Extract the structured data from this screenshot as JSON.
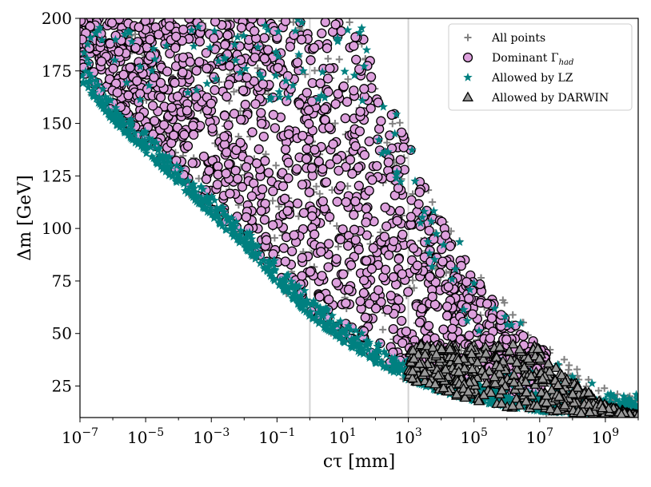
{
  "chart_data": {
    "type": "scatter",
    "title": "",
    "xlabel": "cτ [mm]",
    "ylabel": "Δm [GeV]",
    "xscale": "log",
    "xlim_log10": [
      -7,
      10
    ],
    "ylim": [
      10,
      200
    ],
    "x_ticks": [
      {
        "base": "10",
        "exp": "−7",
        "log10": -7
      },
      {
        "base": "10",
        "exp": "−5",
        "log10": -5
      },
      {
        "base": "10",
        "exp": "−3",
        "log10": -3
      },
      {
        "base": "10",
        "exp": "−1",
        "log10": -1
      },
      {
        "base": "10",
        "exp": "1",
        "log10": 1
      },
      {
        "base": "10",
        "exp": "3",
        "log10": 3
      },
      {
        "base": "10",
        "exp": "5",
        "log10": 5
      },
      {
        "base": "10",
        "exp": "7",
        "log10": 7
      },
      {
        "base": "10",
        "exp": "9",
        "log10": 9
      }
    ],
    "y_ticks": [
      "25",
      "50",
      "75",
      "100",
      "125",
      "150",
      "175",
      "200"
    ],
    "vlines_log10": [
      0,
      3
    ],
    "grid": false,
    "legend_position": "top-right",
    "legend": [
      {
        "label": "All points",
        "marker": "plus",
        "color": "#808080"
      },
      {
        "label": "Dominant Γ",
        "sub": "had",
        "marker": "circle",
        "color": "#dda0dd"
      },
      {
        "label": "Allowed by LZ",
        "marker": "star",
        "color": "#008080"
      },
      {
        "label": "Allowed by DARWIN",
        "marker": "triangle",
        "color": "#999999"
      }
    ],
    "series_colors": {
      "all_points": "#808080",
      "dominant_had": "#dda0dd",
      "allowed_lz": "#008080",
      "allowed_darwin": "#999999"
    },
    "region": {
      "lower_envelope_dm_vs_log10ctau": [
        [
          -7,
          170
        ],
        [
          -6,
          150
        ],
        [
          -5,
          135
        ],
        [
          -4,
          120
        ],
        [
          -3,
          105
        ],
        [
          -2,
          90
        ],
        [
          -1,
          73
        ],
        [
          0,
          57
        ],
        [
          1,
          45
        ],
        [
          2,
          35
        ],
        [
          3,
          27
        ],
        [
          4,
          21
        ],
        [
          5,
          17
        ],
        [
          6,
          14
        ],
        [
          7,
          12
        ],
        [
          8,
          11
        ],
        [
          9,
          10.5
        ],
        [
          10,
          10
        ]
      ],
      "upper_envelope_dm_vs_log10ctau": [
        [
          -7,
          200
        ],
        [
          -3,
          200
        ],
        [
          0,
          200
        ],
        [
          1,
          200
        ],
        [
          1.5,
          196
        ],
        [
          2,
          175
        ],
        [
          3,
          140
        ],
        [
          4,
          105
        ],
        [
          5,
          78
        ],
        [
          6,
          58
        ],
        [
          7,
          44
        ],
        [
          8,
          30
        ],
        [
          9,
          18
        ],
        [
          10,
          13
        ]
      ],
      "darwin_log10ctau_min": 3,
      "darwin_dm_max": 45
    }
  }
}
